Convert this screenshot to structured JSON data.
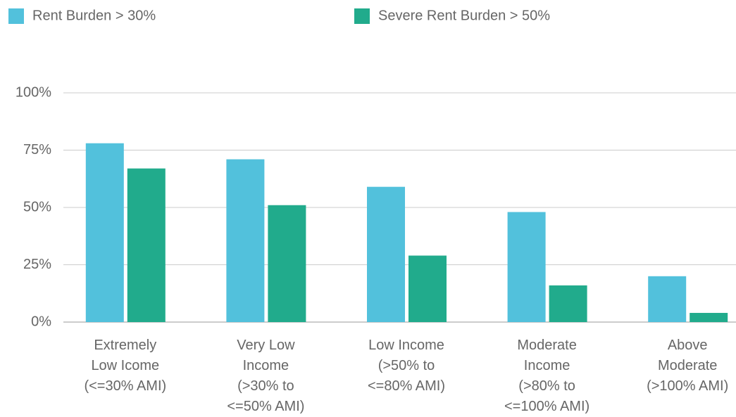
{
  "chart_data": {
    "type": "bar",
    "categories": [
      "Extremely\nLow Icome\n(<=30% AMI)",
      "Very Low\nIncome\n(>30% to\n<=50% AMI)",
      "Low Income\n(>50% to\n<=80% AMI)",
      "Moderate\nIncome\n(>80% to\n<=100% AMI)",
      "Above\nModerate\n(>100% AMI)"
    ],
    "series": [
      {
        "name": "Rent Burden > 30%",
        "color": "#52c1dc",
        "values": [
          78,
          71,
          59,
          48,
          20
        ]
      },
      {
        "name": "Severe Rent Burden > 50%",
        "color": "#21ab8c",
        "values": [
          67,
          51,
          29,
          16,
          4
        ]
      }
    ],
    "ylim": [
      0,
      100
    ],
    "yticks": [
      {
        "value": 0,
        "label": "0%"
      },
      {
        "value": 25,
        "label": "25%"
      },
      {
        "value": 50,
        "label": "50%"
      },
      {
        "value": 75,
        "label": "75%"
      },
      {
        "value": 100,
        "label": "100%"
      }
    ],
    "grid": true,
    "legend": "top"
  }
}
